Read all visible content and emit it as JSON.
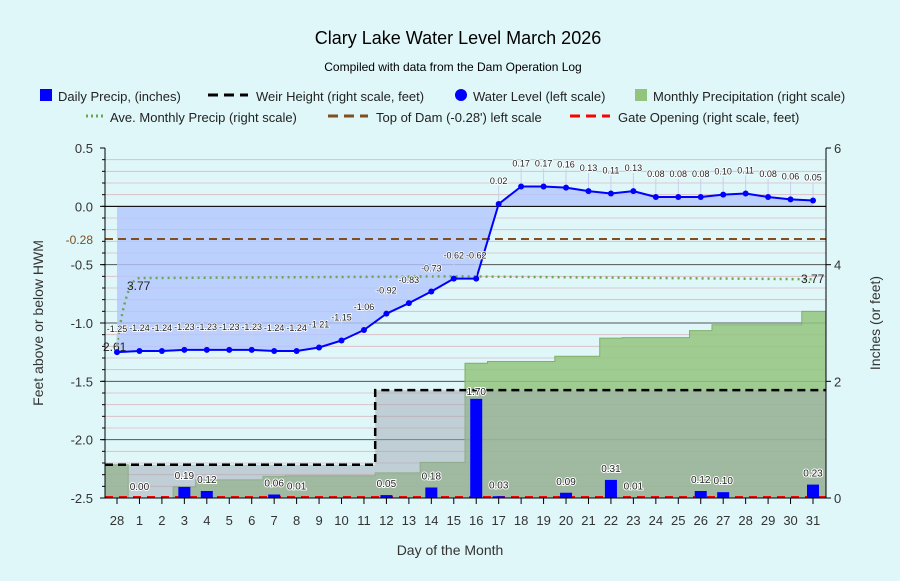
{
  "chart_data": {
    "type": "line",
    "title": "Clary Lake Water Level March 2026",
    "subtitle": "Compiled with data from the Dam Operation Log",
    "xlabel": "Day of the Month",
    "ylabel": "Feet above or below HWM",
    "y2label": "Inches (or feet)",
    "ylim": [
      -2.5,
      0.5
    ],
    "y2lim": [
      0,
      6
    ],
    "yticks": [
      "0.5",
      "0.0",
      "-0.5",
      "-1.0",
      "-1.5",
      "-2.0",
      "-2.5"
    ],
    "y2ticks": [
      "6",
      "4",
      "2",
      "0"
    ],
    "top_of_dam_label": "-0.28",
    "categories": [
      "28",
      "1",
      "2",
      "3",
      "4",
      "5",
      "6",
      "7",
      "8",
      "9",
      "10",
      "11",
      "12",
      "13",
      "14",
      "15",
      "16",
      "17",
      "18",
      "19",
      "20",
      "21",
      "22",
      "23",
      "24",
      "25",
      "26",
      "27",
      "28",
      "29",
      "30",
      "31"
    ],
    "legend": [
      {
        "name": "Daily Precip, (inches)",
        "color": "#0000ff",
        "symbol": "square"
      },
      {
        "name": "Weir Height (right scale, feet)",
        "color": "#000000",
        "symbol": "dash"
      },
      {
        "name": "Water Level (left scale)",
        "color": "#0000ff",
        "symbol": "circle"
      },
      {
        "name": "Monthly Precipitation (right scale)",
        "color": "#93c47d",
        "symbol": "square"
      },
      {
        "name": "Ave. Monthly Precip (right scale)",
        "color": "#6aa84f",
        "symbol": "dot"
      },
      {
        "name": "Top of Dam (-0.28') left scale",
        "color": "#7f4f1f",
        "symbol": "dash"
      },
      {
        "name": "Gate Opening (right scale, feet)",
        "color": "#ff0000",
        "symbol": "dash"
      }
    ],
    "series": {
      "water_level": [
        -1.25,
        -1.24,
        -1.24,
        -1.23,
        -1.23,
        -1.23,
        -1.23,
        -1.24,
        -1.24,
        -1.21,
        -1.15,
        -1.06,
        -0.92,
        -0.83,
        -0.73,
        -0.62,
        -0.62,
        0.02,
        0.17,
        0.17,
        0.16,
        0.13,
        0.11,
        0.13,
        0.08,
        0.08,
        0.08,
        0.1,
        0.11,
        0.08,
        0.06,
        0.05
      ],
      "water_level_labels": [
        "-1.25",
        "-1.24",
        "-1.24",
        "-1.23",
        "-1.23",
        "-1.23",
        "-1.23",
        "-1.24",
        "-1.24",
        "-1.21",
        "-1.15",
        "-1.06",
        "-0.92",
        "-0.83",
        "-0.73",
        "-0.62",
        "-0.62",
        "0.02",
        "0.17",
        "0.17",
        "0.16",
        "0.13",
        "0.11",
        "0.13",
        "0.08",
        "0.08",
        "0.08",
        "0.10",
        "0.11",
        "0.08",
        "0.06",
        "0.05"
      ],
      "daily_precip": [
        null,
        0.0,
        null,
        0.19,
        0.12,
        null,
        null,
        0.06,
        0.01,
        null,
        null,
        null,
        0.05,
        null,
        0.18,
        null,
        1.7,
        0.03,
        null,
        null,
        0.09,
        null,
        0.31,
        0.01,
        null,
        null,
        0.12,
        0.1,
        null,
        null,
        null,
        0.23
      ],
      "daily_precip_labels": [
        null,
        "0.00",
        null,
        "0.19",
        "0.12",
        null,
        null,
        "0.06",
        "0.01",
        null,
        null,
        null,
        "0.05",
        null,
        "0.18",
        null,
        "1.70",
        "0.03",
        null,
        null,
        "0.09",
        null,
        "0.31",
        "0.01",
        null,
        null,
        "0.12",
        "0.10",
        null,
        null,
        null,
        "0.23"
      ],
      "monthly_precip": [
        0.57,
        0.0,
        0.0,
        0.19,
        0.31,
        0.31,
        0.31,
        0.37,
        0.38,
        0.38,
        0.38,
        0.38,
        0.43,
        0.43,
        0.61,
        0.61,
        2.31,
        2.34,
        2.34,
        2.34,
        2.43,
        2.43,
        2.74,
        2.75,
        2.75,
        2.75,
        2.87,
        2.97,
        2.97,
        2.97,
        2.97,
        3.2
      ],
      "weir_height": [
        0.57,
        0.57,
        0.57,
        0.57,
        0.57,
        0.57,
        0.57,
        0.57,
        0.57,
        0.57,
        0.57,
        0.57,
        1.85,
        1.85,
        1.85,
        1.85,
        1.85,
        1.85,
        1.85,
        1.85,
        1.85,
        1.85,
        1.85,
        1.85,
        1.85,
        1.85,
        1.85,
        1.85,
        1.85,
        1.85,
        1.85,
        1.85
      ],
      "ave_monthly_precip_start": 2.61,
      "ave_monthly_precip": 3.77,
      "ave_start_label": "2.61",
      "ave_label": "3.77",
      "top_of_dam": -0.28,
      "gate_opening": 0
    }
  }
}
